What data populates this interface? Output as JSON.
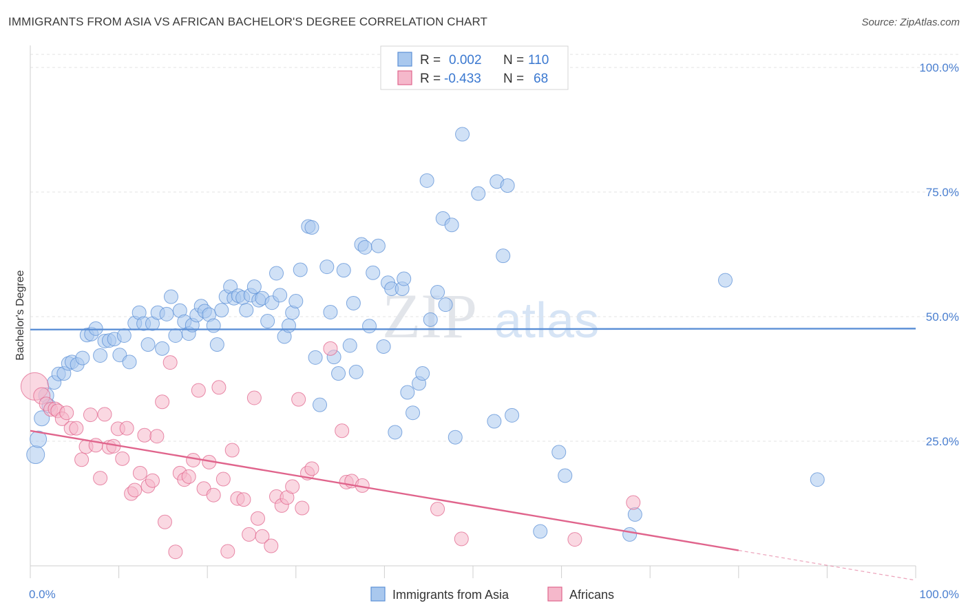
{
  "header": {
    "title": "IMMIGRANTS FROM ASIA VS AFRICAN BACHELOR'S DEGREE CORRELATION CHART",
    "source": "Source: ZipAtlas.com"
  },
  "watermark": {
    "part1": "ZIP",
    "part2": "atlas"
  },
  "legend": {
    "rows": [
      {
        "r_label": "R =",
        "r_value": "0.002",
        "n_label": "N =",
        "n_value": "110",
        "color": "#a9c8ee"
      },
      {
        "r_label": "R =",
        "r_value": "-0.433",
        "n_label": "N =",
        "n_value": "68",
        "color": "#f5b8cb"
      }
    ]
  },
  "chart_data": {
    "type": "scatter",
    "ylabel": "Bachelor's Degree",
    "xlim": [
      0,
      100
    ],
    "ylim": [
      0,
      100
    ],
    "x_tick_labels": [
      "0.0%",
      "100.0%"
    ],
    "y_ticks": [
      {
        "value": 25,
        "label": "25.0%"
      },
      {
        "value": 50,
        "label": "50.0%"
      },
      {
        "value": 75,
        "label": "75.0%"
      },
      {
        "value": 100,
        "label": "100.0%"
      }
    ],
    "grid": true,
    "legend_position": "top-center",
    "series": [
      {
        "name": "Immigrants from Asia",
        "color": "#5b8fd6",
        "fill": "#a9c8ee",
        "trend": {
          "x0": 0,
          "y0": 47.4,
          "x1": 100,
          "y1": 47.6
        },
        "points": [
          [
            0.6,
            22.3,
            13
          ],
          [
            0.9,
            25.4,
            12
          ],
          [
            1.3,
            29.6,
            11
          ],
          [
            1.8,
            34.2,
            11
          ],
          [
            2.1,
            32.1,
            10
          ],
          [
            2.7,
            36.8,
            10
          ],
          [
            3.2,
            38.5,
            10
          ],
          [
            3.8,
            38.6,
            10
          ],
          [
            4.3,
            40.6,
            10
          ],
          [
            4.7,
            40.9,
            10
          ],
          [
            5.3,
            40.4,
            10
          ],
          [
            5.9,
            41.7,
            10
          ],
          [
            6.4,
            46.3,
            10
          ],
          [
            6.9,
            46.5,
            10
          ],
          [
            7.4,
            47.6,
            10
          ],
          [
            7.9,
            42.2,
            10
          ],
          [
            8.4,
            45.1,
            10
          ],
          [
            8.9,
            45.2,
            10
          ],
          [
            9.5,
            45.5,
            10
          ],
          [
            10.1,
            42.3,
            10
          ],
          [
            10.6,
            46.2,
            10
          ],
          [
            11.2,
            40.9,
            10
          ],
          [
            11.8,
            48.7,
            10
          ],
          [
            12.3,
            50.8,
            10
          ],
          [
            12.8,
            48.6,
            10
          ],
          [
            13.3,
            44.4,
            10
          ],
          [
            13.8,
            48.6,
            10
          ],
          [
            14.4,
            50.8,
            10
          ],
          [
            14.9,
            43.6,
            10
          ],
          [
            15.4,
            50.5,
            10
          ],
          [
            15.9,
            54.0,
            10
          ],
          [
            16.4,
            46.2,
            10
          ],
          [
            16.9,
            51.2,
            10
          ],
          [
            17.4,
            49.0,
            10
          ],
          [
            17.9,
            46.6,
            10
          ],
          [
            18.3,
            48.3,
            10
          ],
          [
            18.8,
            50.3,
            10
          ],
          [
            19.3,
            52.1,
            10
          ],
          [
            19.7,
            51.1,
            10
          ],
          [
            20.2,
            50.4,
            10
          ],
          [
            20.7,
            48.2,
            10
          ],
          [
            21.1,
            44.4,
            10
          ],
          [
            21.6,
            51.3,
            10
          ],
          [
            22.1,
            54.0,
            10
          ],
          [
            22.6,
            56.0,
            10
          ],
          [
            23.0,
            53.7,
            10
          ],
          [
            23.5,
            54.2,
            10
          ],
          [
            24.0,
            53.8,
            10
          ],
          [
            24.4,
            51.3,
            10
          ],
          [
            24.9,
            54.3,
            10
          ],
          [
            25.3,
            56.0,
            10
          ],
          [
            25.8,
            53.3,
            10
          ],
          [
            26.2,
            53.7,
            10
          ],
          [
            26.8,
            49.1,
            10
          ],
          [
            27.3,
            52.8,
            10
          ],
          [
            27.8,
            58.7,
            10
          ],
          [
            28.2,
            54.3,
            10
          ],
          [
            28.7,
            46.0,
            10
          ],
          [
            29.2,
            48.2,
            10
          ],
          [
            29.6,
            50.8,
            10
          ],
          [
            30.0,
            53.1,
            10
          ],
          [
            30.5,
            59.4,
            10
          ],
          [
            31.4,
            68.1,
            10
          ],
          [
            31.8,
            67.9,
            10
          ],
          [
            32.2,
            41.8,
            10
          ],
          [
            32.7,
            32.3,
            10
          ],
          [
            33.5,
            60.0,
            10
          ],
          [
            33.9,
            50.9,
            10
          ],
          [
            34.3,
            41.9,
            10
          ],
          [
            34.8,
            38.6,
            10
          ],
          [
            35.4,
            59.3,
            10
          ],
          [
            36.1,
            44.2,
            10
          ],
          [
            36.5,
            52.7,
            10
          ],
          [
            36.8,
            38.9,
            10
          ],
          [
            37.4,
            64.5,
            10
          ],
          [
            37.8,
            63.9,
            10
          ],
          [
            38.3,
            48.1,
            10
          ],
          [
            38.7,
            58.8,
            10
          ],
          [
            39.3,
            64.2,
            10
          ],
          [
            39.9,
            44.0,
            10
          ],
          [
            40.4,
            56.8,
            10
          ],
          [
            40.8,
            55.6,
            10
          ],
          [
            41.2,
            26.8,
            10
          ],
          [
            42.0,
            55.6,
            10
          ],
          [
            42.2,
            57.6,
            10
          ],
          [
            42.6,
            34.8,
            10
          ],
          [
            43.2,
            30.7,
            10
          ],
          [
            43.9,
            36.6,
            10
          ],
          [
            44.3,
            38.6,
            10
          ],
          [
            44.8,
            77.3,
            10
          ],
          [
            45.2,
            49.4,
            10
          ],
          [
            46.0,
            54.9,
            10
          ],
          [
            46.6,
            69.7,
            10
          ],
          [
            46.9,
            52.4,
            10
          ],
          [
            47.6,
            68.4,
            10
          ],
          [
            48.0,
            25.8,
            10
          ],
          [
            48.8,
            86.6,
            10
          ],
          [
            50.6,
            74.7,
            10
          ],
          [
            52.4,
            29.0,
            10
          ],
          [
            52.7,
            77.1,
            10
          ],
          [
            53.4,
            62.2,
            10
          ],
          [
            53.9,
            76.3,
            10
          ],
          [
            54.4,
            30.2,
            10
          ],
          [
            57.6,
            6.9,
            10
          ],
          [
            59.7,
            22.8,
            10
          ],
          [
            60.4,
            18.1,
            10
          ],
          [
            67.7,
            6.3,
            10
          ],
          [
            68.3,
            10.3,
            10
          ],
          [
            78.5,
            57.3,
            10
          ],
          [
            88.9,
            17.3,
            10
          ]
        ]
      },
      {
        "name": "Africans",
        "color": "#e0648c",
        "fill": "#f5b8cb",
        "trend": {
          "x0": 0,
          "y0": 27.1,
          "x1": 80,
          "y1": 3.1,
          "dash_to_x": 100,
          "dash_to_y": -2.9
        },
        "points": [
          [
            0.5,
            36.0,
            20
          ],
          [
            1.3,
            34.1,
            12
          ],
          [
            1.8,
            32.5,
            10
          ],
          [
            2.3,
            31.4,
            10
          ],
          [
            2.8,
            31.5,
            10
          ],
          [
            3.1,
            31.1,
            10
          ],
          [
            3.6,
            29.5,
            10
          ],
          [
            4.1,
            30.7,
            10
          ],
          [
            4.6,
            27.6,
            10
          ],
          [
            5.2,
            27.6,
            10
          ],
          [
            5.8,
            21.3,
            10
          ],
          [
            6.3,
            23.9,
            10
          ],
          [
            6.8,
            30.3,
            10
          ],
          [
            7.4,
            24.2,
            10
          ],
          [
            7.9,
            17.6,
            10
          ],
          [
            8.4,
            30.4,
            10
          ],
          [
            8.9,
            23.8,
            10
          ],
          [
            9.4,
            24.0,
            10
          ],
          [
            9.9,
            27.5,
            10
          ],
          [
            10.4,
            21.5,
            10
          ],
          [
            10.9,
            27.6,
            10
          ],
          [
            11.4,
            14.5,
            10
          ],
          [
            11.8,
            15.2,
            10
          ],
          [
            12.4,
            18.6,
            10
          ],
          [
            12.9,
            26.2,
            10
          ],
          [
            13.3,
            16.0,
            10
          ],
          [
            13.8,
            17.1,
            10
          ],
          [
            14.3,
            26.0,
            10
          ],
          [
            14.9,
            32.9,
            10
          ],
          [
            15.2,
            8.8,
            10
          ],
          [
            15.8,
            40.8,
            10
          ],
          [
            16.4,
            2.8,
            10
          ],
          [
            16.9,
            18.6,
            10
          ],
          [
            17.4,
            17.3,
            10
          ],
          [
            17.9,
            17.9,
            10
          ],
          [
            18.4,
            21.2,
            10
          ],
          [
            19.0,
            35.2,
            10
          ],
          [
            19.6,
            15.5,
            10
          ],
          [
            20.2,
            20.8,
            10
          ],
          [
            20.7,
            14.2,
            10
          ],
          [
            21.3,
            35.8,
            10
          ],
          [
            21.8,
            17.4,
            10
          ],
          [
            22.3,
            2.9,
            10
          ],
          [
            22.8,
            23.2,
            10
          ],
          [
            23.4,
            13.5,
            10
          ],
          [
            24.1,
            13.3,
            10
          ],
          [
            24.7,
            6.3,
            10
          ],
          [
            25.3,
            33.7,
            10
          ],
          [
            25.7,
            9.5,
            10
          ],
          [
            26.2,
            5.9,
            10
          ],
          [
            27.2,
            4.0,
            10
          ],
          [
            27.8,
            13.9,
            10
          ],
          [
            28.4,
            12.1,
            10
          ],
          [
            29.0,
            13.7,
            10
          ],
          [
            29.6,
            15.9,
            10
          ],
          [
            30.3,
            33.4,
            10
          ],
          [
            30.7,
            11.6,
            10
          ],
          [
            31.3,
            18.6,
            10
          ],
          [
            31.8,
            19.5,
            10
          ],
          [
            33.9,
            43.6,
            10
          ],
          [
            35.2,
            27.1,
            10
          ],
          [
            35.7,
            16.8,
            10
          ],
          [
            36.3,
            17.0,
            10
          ],
          [
            37.5,
            16.1,
            10
          ],
          [
            46.0,
            11.4,
            10
          ],
          [
            48.7,
            5.4,
            10
          ],
          [
            61.5,
            5.3,
            10
          ],
          [
            68.1,
            12.7,
            10
          ]
        ]
      }
    ]
  }
}
